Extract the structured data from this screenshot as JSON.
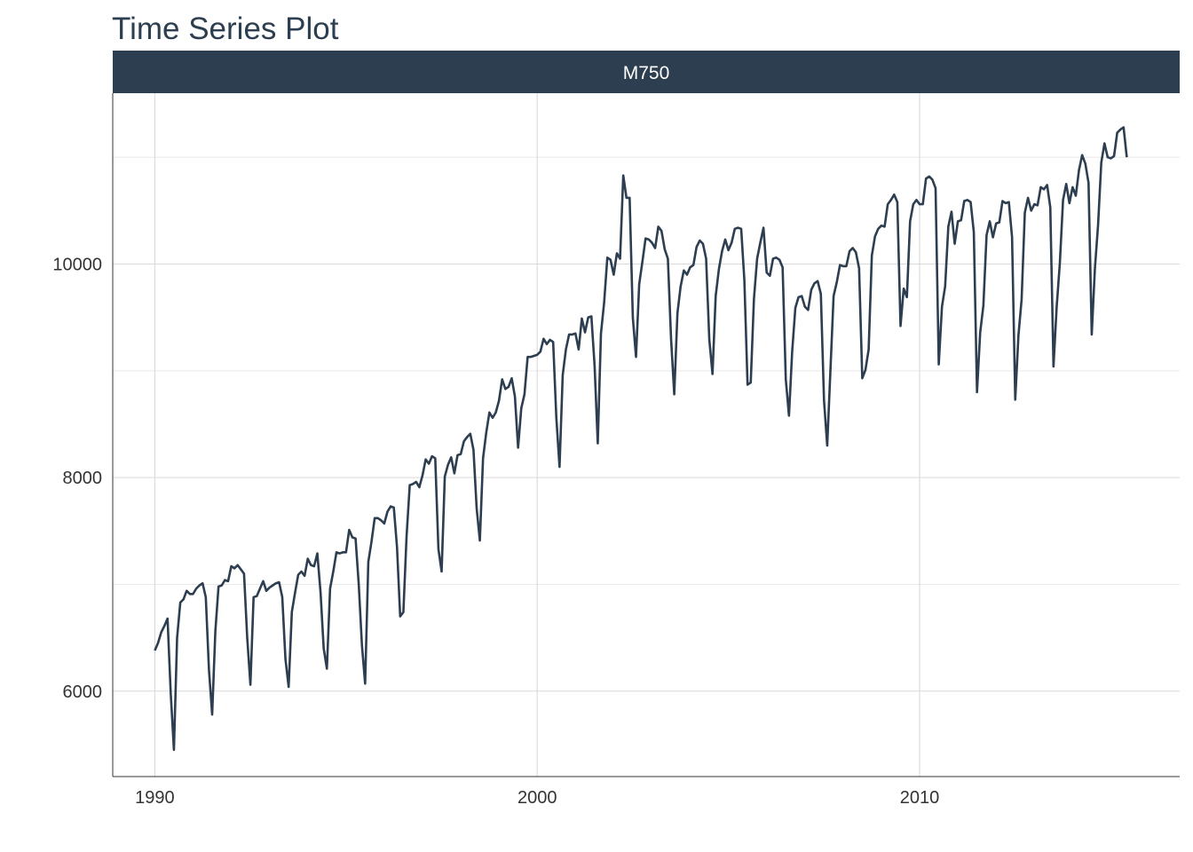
{
  "chart_data": {
    "type": "line",
    "title": "Time Series Plot",
    "facet_label": "M750",
    "xlabel": "",
    "ylabel": "",
    "x_ticks": [
      1990,
      2000,
      2010
    ],
    "y_ticks": [
      6000,
      8000,
      10000
    ],
    "xlim": [
      1988.9,
      2016.8
    ],
    "ylim": [
      5200,
      11600
    ],
    "grid": true,
    "colors": {
      "series": "#2c3e50",
      "strip": "#2c3e50",
      "strip_text": "#ffffff"
    },
    "series": [
      {
        "start": 1990.0,
        "frequency": 12,
        "values": [
          6380,
          6450,
          6550,
          6610,
          6680,
          5980,
          5450,
          6500,
          6830,
          6860,
          6940,
          6910,
          6910,
          6960,
          6990,
          7010,
          6880,
          6200,
          5780,
          6560,
          6980,
          6990,
          7040,
          7030,
          7170,
          7150,
          7180,
          7140,
          7100,
          6500,
          6060,
          6880,
          6890,
          6960,
          7030,
          6940,
          6970,
          6990,
          7010,
          7020,
          6880,
          6300,
          6040,
          6740,
          6920,
          7090,
          7120,
          7080,
          7240,
          7180,
          7170,
          7290,
          6930,
          6400,
          6210,
          6960,
          7120,
          7300,
          7290,
          7300,
          7300,
          7510,
          7440,
          7430,
          7000,
          6430,
          6070,
          7210,
          7400,
          7620,
          7620,
          7600,
          7570,
          7680,
          7730,
          7720,
          7350,
          6700,
          6740,
          7450,
          7930,
          7940,
          7960,
          7910,
          8020,
          8170,
          8130,
          8200,
          8180,
          7330,
          7120,
          8010,
          8120,
          8190,
          8040,
          8210,
          8220,
          8340,
          8380,
          8410,
          8260,
          7710,
          7410,
          8180,
          8420,
          8610,
          8560,
          8610,
          8720,
          8920,
          8830,
          8850,
          8930,
          8760,
          8280,
          8650,
          8780,
          9130,
          9130,
          9140,
          9150,
          9180,
          9300,
          9250,
          9290,
          9270,
          8560,
          8100,
          8960,
          9200,
          9340,
          9340,
          9350,
          9200,
          9490,
          9360,
          9500,
          9510,
          9050,
          8320,
          9350,
          9640,
          10060,
          10040,
          9900,
          10100,
          10050,
          10830,
          10620,
          10620,
          9500,
          9130,
          9810,
          10020,
          10240,
          10230,
          10200,
          10150,
          10350,
          10310,
          10140,
          10050,
          9300,
          8780,
          9540,
          9790,
          9940,
          9900,
          9970,
          9990,
          10160,
          10220,
          10190,
          10050,
          9290,
          8970,
          9700,
          9950,
          10120,
          10230,
          10130,
          10200,
          10330,
          10340,
          10330,
          9850,
          8870,
          8890,
          9670,
          10050,
          10200,
          10340,
          9920,
          9890,
          10050,
          10060,
          10040,
          9970,
          8920,
          8580,
          9180,
          9590,
          9690,
          9700,
          9600,
          9570,
          9760,
          9820,
          9840,
          9720,
          8720,
          8300,
          9000,
          9700,
          9830,
          9990,
          9980,
          9980,
          10120,
          10150,
          10110,
          9960,
          8930,
          9010,
          9200,
          10080,
          10260,
          10330,
          10360,
          10350,
          10560,
          10600,
          10650,
          10580,
          9420,
          9770,
          9690,
          10400,
          10560,
          10600,
          10560,
          10560,
          10800,
          10820,
          10790,
          10710,
          9060,
          9600,
          9790,
          10350,
          10490,
          10190,
          10400,
          10410,
          10590,
          10600,
          10580,
          10300,
          8800,
          9360,
          9610,
          10270,
          10400,
          10250,
          10380,
          10390,
          10590,
          10570,
          10580,
          10250,
          8730,
          9330,
          9670,
          10480,
          10620,
          10500,
          10560,
          10550,
          10720,
          10700,
          10740,
          10530,
          9040,
          9600,
          10010,
          10600,
          10750,
          10570,
          10720,
          10640,
          10880,
          11020,
          10940,
          10760,
          9340,
          9960,
          10370,
          10950,
          11130,
          11000,
          10990,
          11010,
          11230,
          11260,
          11280,
          11000
        ]
      }
    ]
  }
}
